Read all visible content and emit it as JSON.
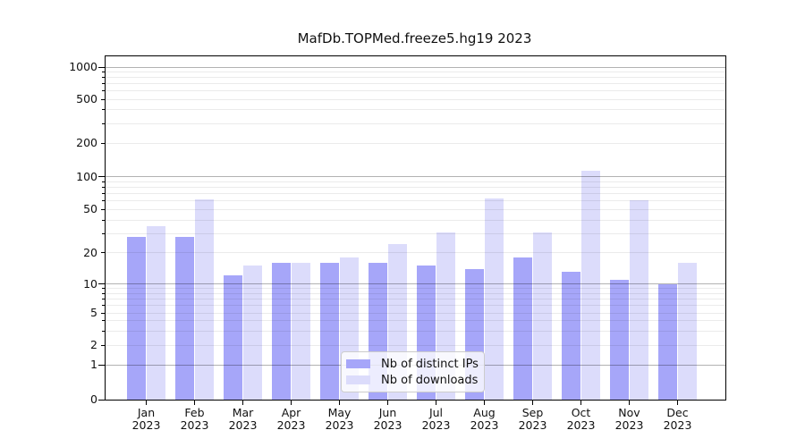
{
  "title": "MafDb.TOPMed.freeze5.hg19 2023",
  "colors": {
    "ips_bar": "#a6a6f9",
    "downloads_bar": "#dcdcfb",
    "grid_major": "rgba(0,0,0,0.30)",
    "grid_minor": "rgba(0,0,0,0.08)",
    "axis": "#000000",
    "text": "#111111",
    "legend_border": "#cccccc",
    "legend_bg": "rgba(255,255,255,0.8)"
  },
  "legend": {
    "items": [
      {
        "label": "Nb of distinct IPs",
        "key": "ips"
      },
      {
        "label": "Nb of downloads",
        "key": "downloads"
      }
    ]
  },
  "y_axis": {
    "labeled_ticks": [
      1000,
      500,
      200,
      100,
      50,
      20,
      10,
      5,
      2,
      1,
      0
    ],
    "major_ticks": [
      1000,
      100,
      10,
      1,
      0
    ],
    "minor_unlabeled": [
      900,
      800,
      700,
      600,
      400,
      300,
      90,
      80,
      70,
      60,
      40,
      30,
      9,
      8,
      7,
      6,
      4,
      3
    ]
  },
  "x_axis": {
    "months": [
      "Jan",
      "Feb",
      "Mar",
      "Apr",
      "May",
      "Jun",
      "Jul",
      "Aug",
      "Sep",
      "Oct",
      "Nov",
      "Dec"
    ],
    "year": "2023"
  },
  "chart_data": {
    "type": "bar",
    "title": "MafDb.TOPMed.freeze5.hg19 2023",
    "categories": [
      "Jan 2023",
      "Feb 2023",
      "Mar 2023",
      "Apr 2023",
      "May 2023",
      "Jun 2023",
      "Jul 2023",
      "Aug 2023",
      "Sep 2023",
      "Oct 2023",
      "Nov 2023",
      "Dec 2023"
    ],
    "series": [
      {
        "name": "Nb of distinct IPs",
        "key": "ips",
        "values": [
          28,
          28,
          12,
          16,
          16,
          16,
          15,
          14,
          18,
          13,
          11,
          10
        ]
      },
      {
        "name": "Nb of downloads",
        "key": "downloads",
        "values": [
          35,
          62,
          15,
          16,
          18,
          24,
          31,
          63,
          31,
          113,
          61,
          16
        ]
      }
    ],
    "y_scale": "log-with-zero",
    "y_ticks": [
      0,
      1,
      2,
      5,
      10,
      20,
      50,
      100,
      200,
      500,
      1000
    ],
    "ylim": [
      0,
      1200
    ],
    "grid": true,
    "legend_position": "lower center"
  }
}
